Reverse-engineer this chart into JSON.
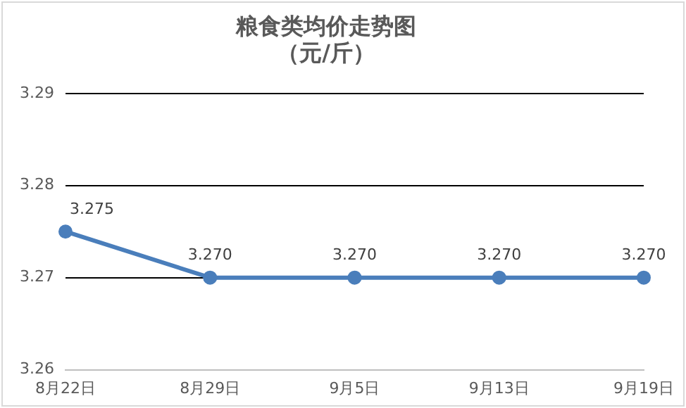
{
  "chart_data": {
    "type": "line",
    "title": "粮食类均价走势图",
    "subtitle": "（元/斤）",
    "categories": [
      "8月22日",
      "8月29日",
      "9月5日",
      "9月13日",
      "9月19日"
    ],
    "series": [
      {
        "color": "#4a7ebb",
        "values": [
          3.275,
          3.27,
          3.27,
          3.27,
          3.27
        ],
        "value_labels": [
          "3.275",
          "3.270",
          "3.270",
          "3.270",
          "3.270"
        ]
      }
    ],
    "ylim": [
      3.26,
      3.29
    ],
    "yticks": [
      3.26,
      3.27,
      3.28,
      3.29
    ],
    "grid": "y",
    "marker": "circle",
    "line_style": "solid",
    "legend": false
  }
}
